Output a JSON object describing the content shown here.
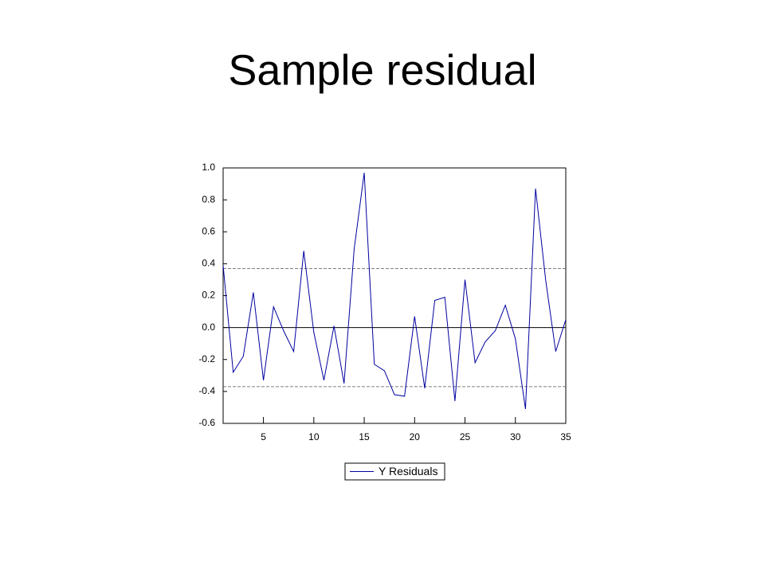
{
  "chart_data": {
    "type": "line",
    "title": "Sample residual",
    "x": [
      1,
      2,
      3,
      4,
      5,
      6,
      7,
      8,
      9,
      10,
      11,
      12,
      13,
      14,
      15,
      16,
      17,
      18,
      19,
      20,
      21,
      22,
      23,
      24,
      25,
      26,
      27,
      28,
      29,
      30,
      31,
      32,
      33,
      34,
      35
    ],
    "series": [
      {
        "name": "Y Residuals",
        "color": "#0000a0",
        "values": [
          0.39,
          -0.28,
          -0.18,
          0.22,
          -0.33,
          0.13,
          -0.02,
          -0.15,
          0.48,
          -0.03,
          -0.33,
          0.01,
          -0.35,
          0.49,
          0.97,
          -0.23,
          -0.27,
          -0.42,
          -0.43,
          0.07,
          -0.38,
          0.17,
          0.19,
          -0.46,
          0.3,
          -0.22,
          -0.09,
          -0.02,
          0.14,
          -0.07,
          -0.51,
          0.87,
          0.3,
          -0.15,
          0.05
        ]
      }
    ],
    "bands": [
      0.37,
      -0.37
    ],
    "xlim": [
      1,
      35
    ],
    "xticks": [
      5,
      10,
      15,
      20,
      25,
      30,
      35
    ],
    "ylim": [
      -0.6,
      1.0
    ],
    "yticks": [
      {
        "value": 1.0,
        "label": "1.0"
      },
      0.8,
      0.6,
      0.4,
      0.2,
      {
        "value": 0.0,
        "label": "0.0"
      },
      -0.2,
      -0.4,
      -0.6
    ],
    "legend": "bottom"
  }
}
